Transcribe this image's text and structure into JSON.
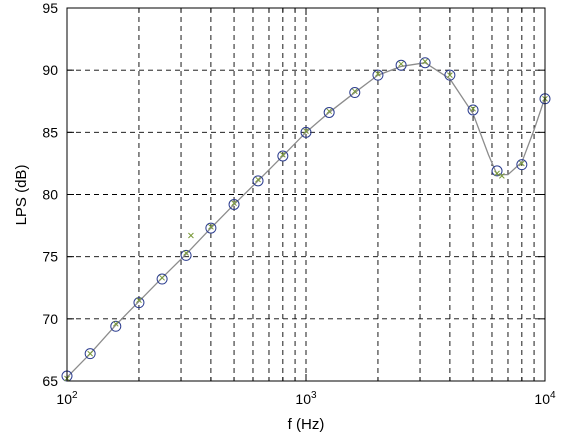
{
  "chart_data": {
    "type": "line",
    "title": "",
    "xlabel": "f (Hz)",
    "ylabel": "LPS (dB)",
    "xscale": "log",
    "xlim": [
      100,
      10000
    ],
    "ylim": [
      65,
      95
    ],
    "grid": true,
    "y_ticks": [
      65,
      70,
      75,
      80,
      85,
      90,
      95
    ],
    "x_ticks_major": [
      {
        "value": 100,
        "base": "10",
        "exp": "2"
      },
      {
        "value": 1000,
        "base": "10",
        "exp": "3"
      },
      {
        "value": 10000,
        "base": "10",
        "exp": "4"
      }
    ],
    "series": [
      {
        "marker": "circle",
        "color": "#2c3d8f",
        "x": [
          100,
          125,
          160,
          200,
          250,
          315,
          400,
          500,
          630,
          800,
          1000,
          1250,
          1600,
          2000,
          2500,
          3150,
          4000,
          5000,
          6300,
          8000,
          10000
        ],
        "y": [
          65.4,
          67.2,
          69.4,
          71.3,
          73.2,
          75.1,
          77.3,
          79.2,
          81.1,
          83.1,
          85.0,
          86.6,
          88.2,
          89.6,
          90.4,
          90.6,
          89.6,
          86.8,
          81.9,
          82.4,
          87.7
        ]
      },
      {
        "marker": "x",
        "color": "#7a9a3a",
        "x": [
          100,
          125,
          160,
          200,
          250,
          315,
          330,
          400,
          500,
          630,
          800,
          1000,
          1250,
          1600,
          2000,
          2500,
          3150,
          4000,
          5000,
          6300,
          6600,
          8000,
          10000
        ],
        "y": [
          65.2,
          67.2,
          69.6,
          71.5,
          73.3,
          75.3,
          76.7,
          77.4,
          79.3,
          81.2,
          83.2,
          85.1,
          86.7,
          88.3,
          89.7,
          90.5,
          90.7,
          89.6,
          86.9,
          81.7,
          81.5,
          82.5,
          87.7
        ]
      }
    ],
    "line": {
      "color": "#8c8c8c",
      "x": [
        100,
        125,
        160,
        200,
        250,
        315,
        400,
        500,
        630,
        800,
        1000,
        1250,
        1600,
        2000,
        2500,
        3150,
        4000,
        5000,
        5800,
        6300,
        7000,
        8000,
        9000,
        10000
      ],
      "y": [
        65.3,
        67.2,
        69.5,
        71.4,
        73.3,
        75.2,
        77.3,
        79.2,
        81.1,
        83.1,
        85.0,
        86.6,
        88.2,
        89.6,
        90.3,
        90.6,
        89.3,
        86.5,
        83.2,
        81.6,
        81.6,
        82.6,
        85.2,
        87.8
      ]
    }
  }
}
